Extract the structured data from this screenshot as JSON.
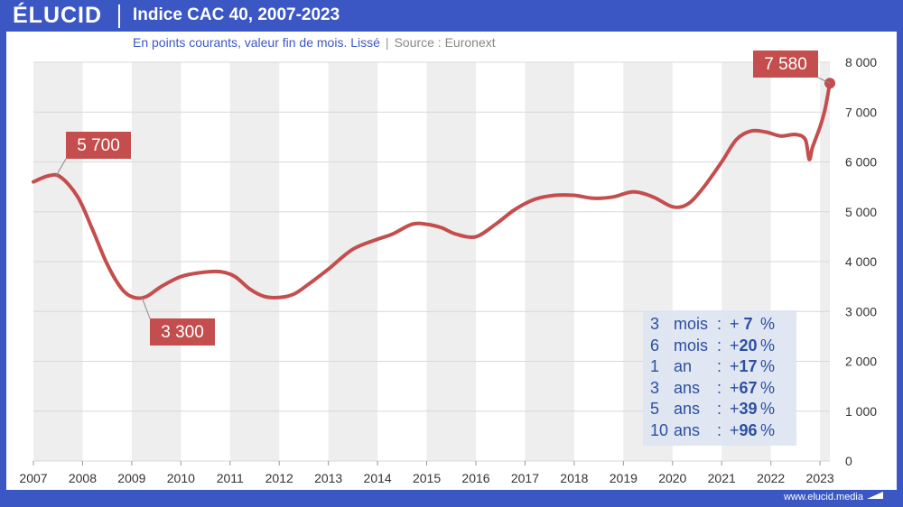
{
  "header": {
    "logo": "ÉLUCID",
    "title": "Indice CAC 40, 2007-2023"
  },
  "subtitle": {
    "main": "En points courants, valeur fin de mois. Lissé",
    "separator": "|",
    "source": "Source : Euronext"
  },
  "footer": {
    "url": "www.elucid.media"
  },
  "stats": [
    {
      "n": "3",
      "unit": "mois",
      "colon": ":",
      "sign": "+",
      "value": "7",
      "pct": "%"
    },
    {
      "n": "6",
      "unit": "mois",
      "colon": ":",
      "sign": "+",
      "value": "20",
      "pct": "%"
    },
    {
      "n": "1",
      "unit": "an",
      "colon": ":",
      "sign": "+",
      "value": "17",
      "pct": "%"
    },
    {
      "n": "3",
      "unit": "ans",
      "colon": ":",
      "sign": "+",
      "value": "67",
      "pct": "%"
    },
    {
      "n": "5",
      "unit": "ans",
      "colon": ":",
      "sign": "+",
      "value": "39",
      "pct": "%"
    },
    {
      "n": "10",
      "unit": "ans",
      "colon": ":",
      "sign": "+",
      "value": "96",
      "pct": "%"
    }
  ],
  "colors": {
    "brand_blue": "#3a57c4",
    "line": "#c44d4d",
    "label_bg": "#c44d4d",
    "band": "#eeeeee",
    "stats_text": "#2d4fa0"
  },
  "chart_data": {
    "type": "line",
    "title": "Indice CAC 40, 2007-2023",
    "subtitle": "En points courants, valeur fin de mois. Lissé",
    "xlim": [
      2007,
      2023.2
    ],
    "ylim": [
      0,
      8000
    ],
    "y_ticks": [
      0,
      1000,
      2000,
      3000,
      4000,
      5000,
      6000,
      7000,
      8000
    ],
    "y_tick_labels": [
      "0",
      "1 000",
      "2 000",
      "3 000",
      "4 000",
      "5 000",
      "6 000",
      "7 000",
      "8 000"
    ],
    "x_ticks": [
      2007,
      2008,
      2009,
      2010,
      2011,
      2012,
      2013,
      2014,
      2015,
      2016,
      2017,
      2018,
      2019,
      2020,
      2021,
      2022,
      2023
    ],
    "x_tick_labels": [
      "2007",
      "2008",
      "2009",
      "2010",
      "2011",
      "2012",
      "2013",
      "2014",
      "2015",
      "2016",
      "2017",
      "2018",
      "2019",
      "2020",
      "2021",
      "2022",
      "2023"
    ],
    "grid": "horizontal",
    "alternate_year_bands": true,
    "series": [
      {
        "x": [
          2007.0,
          2007.3,
          2007.55,
          2007.9,
          2008.2,
          2008.5,
          2008.8,
          2009.05,
          2009.3,
          2009.6,
          2010.0,
          2010.4,
          2010.8,
          2011.1,
          2011.4,
          2011.7,
          2012.0,
          2012.3,
          2012.6,
          2013.0,
          2013.5,
          2014.0,
          2014.3,
          2014.7,
          2015.0,
          2015.3,
          2015.6,
          2016.0,
          2016.4,
          2016.8,
          2017.2,
          2017.6,
          2018.0,
          2018.4,
          2018.8,
          2019.2,
          2019.6,
          2020.0,
          2020.3,
          2020.6,
          2021.0,
          2021.3,
          2021.6,
          2021.9,
          2022.2,
          2022.5,
          2022.7,
          2022.78,
          2022.85,
          2023.0,
          2023.1,
          2023.2
        ],
        "y": [
          5600,
          5720,
          5700,
          5300,
          4650,
          3950,
          3450,
          3280,
          3300,
          3500,
          3700,
          3780,
          3800,
          3700,
          3450,
          3300,
          3280,
          3350,
          3550,
          3850,
          4250,
          4450,
          4550,
          4750,
          4750,
          4680,
          4550,
          4500,
          4750,
          5050,
          5250,
          5330,
          5330,
          5270,
          5300,
          5400,
          5300,
          5100,
          5150,
          5450,
          6000,
          6450,
          6620,
          6600,
          6520,
          6550,
          6450,
          6050,
          6300,
          6700,
          7050,
          7580
        ]
      }
    ],
    "annotations": [
      {
        "x": 2007.45,
        "y": 5700,
        "label": "5 700"
      },
      {
        "x": 2009.2,
        "y": 3300,
        "label": "3 300"
      },
      {
        "x": 2023.2,
        "y": 7580,
        "label": "7 580"
      }
    ]
  }
}
